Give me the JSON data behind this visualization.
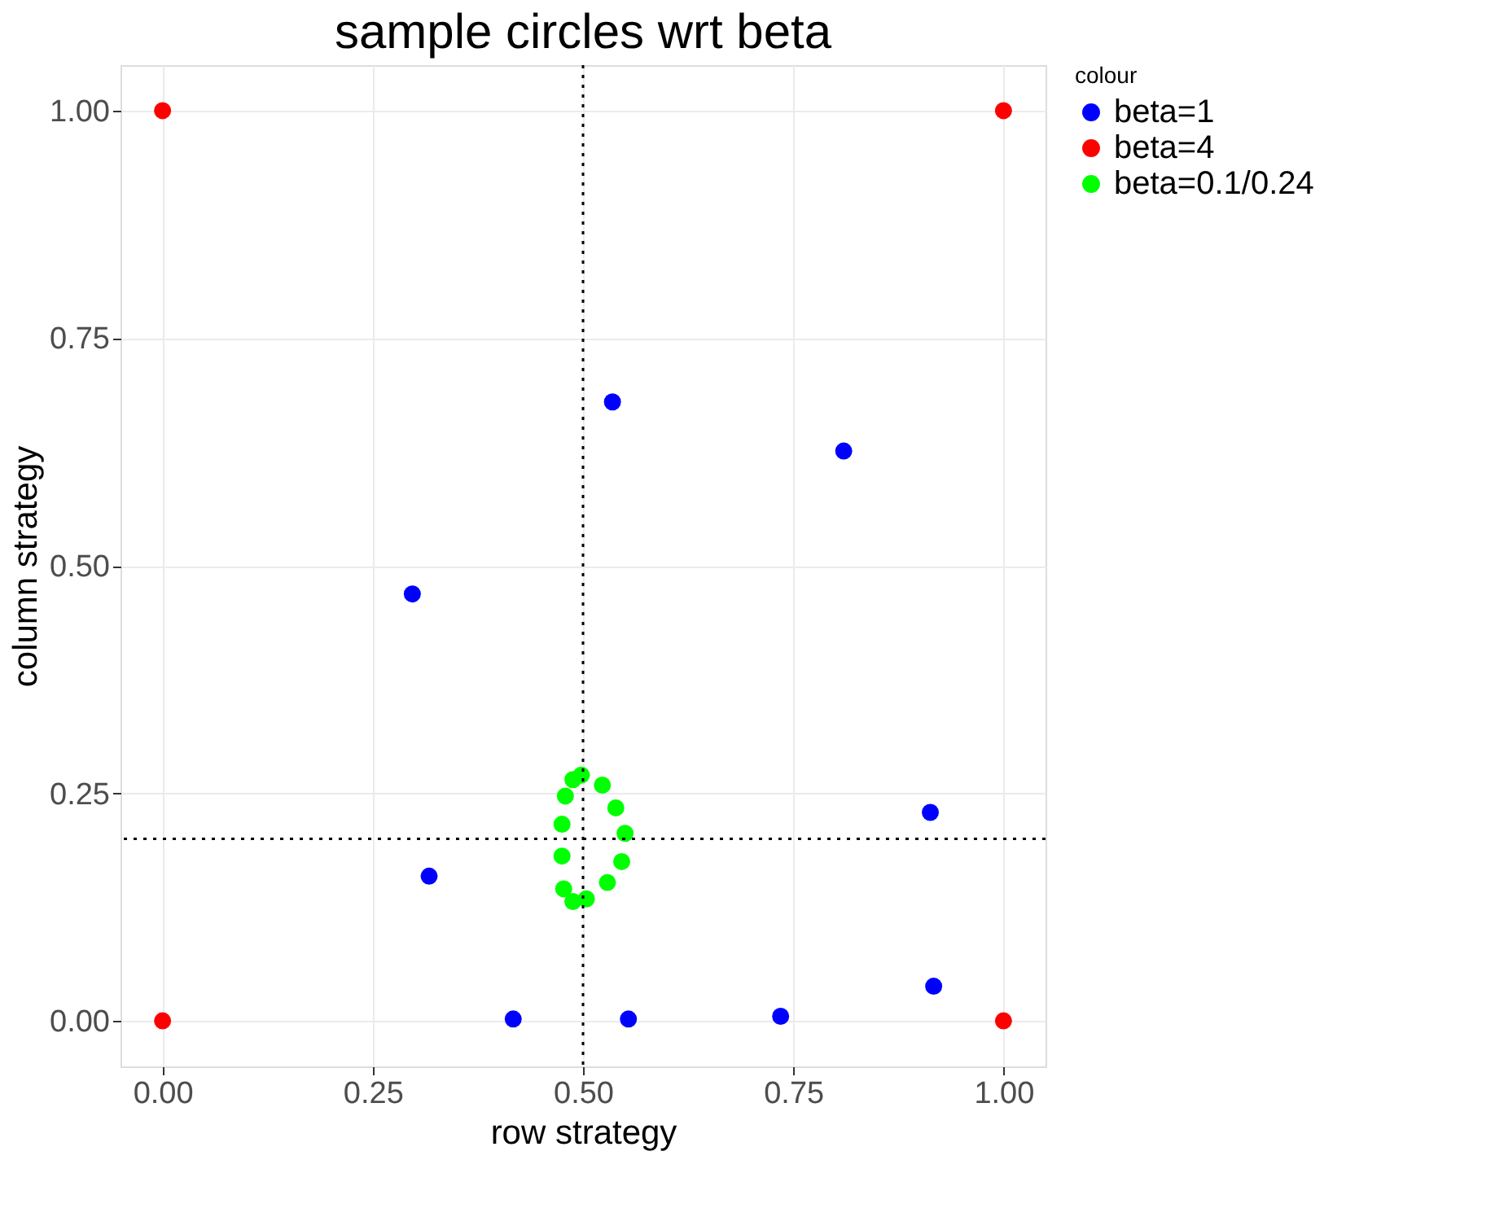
{
  "chart_data": {
    "type": "scatter",
    "title": "sample circles wrt beta",
    "xlabel": "row strategy",
    "ylabel": "column strategy",
    "legend_title": "colour",
    "legend": "right",
    "grid": true,
    "marker": "circle",
    "xlim": [
      -0.05,
      1.05
    ],
    "ylim": [
      -0.05,
      1.05
    ],
    "xticks": [
      {
        "value": 0,
        "label": "0.00"
      },
      {
        "value": 0.25,
        "label": "0.25"
      },
      {
        "value": 0.5,
        "label": "0.50"
      },
      {
        "value": 0.75,
        "label": "0.75"
      },
      {
        "value": 1,
        "label": "1.00"
      }
    ],
    "yticks": [
      {
        "value": 0,
        "label": "0.00"
      },
      {
        "value": 0.25,
        "label": "0.25"
      },
      {
        "value": 0.5,
        "label": "0.50"
      },
      {
        "value": 0.75,
        "label": "0.75"
      },
      {
        "value": 1,
        "label": "1.00"
      }
    ],
    "ref_lines": [
      {
        "axis": "x",
        "value": 0.5,
        "label": null,
        "color": "#000000",
        "line_style": "dotted"
      },
      {
        "axis": "y",
        "value": 0.2,
        "label": null,
        "color": "#000000",
        "line_style": "dotted"
      }
    ],
    "series": [
      {
        "name": "beta=1",
        "color": "#0000ff",
        "x": [
          0.535,
          0.81,
          0.297,
          0.913,
          0.317,
          0.417,
          0.554,
          0.735,
          0.917
        ],
        "values": [
          0.68,
          0.626,
          0.469,
          0.229,
          0.159,
          0.002,
          0.002,
          0.005,
          0.038
        ]
      },
      {
        "name": "beta=4",
        "color": "#ff0000",
        "x": [
          0,
          0,
          1,
          1
        ],
        "values": [
          0,
          1,
          0,
          1
        ]
      },
      {
        "name": "beta=0.1/0.24",
        "color": "#00ff00",
        "x": [
          0.498,
          0.523,
          0.539,
          0.55,
          0.546,
          0.529,
          0.504,
          0.488,
          0.477,
          0.475,
          0.475,
          0.479,
          0.488
        ],
        "values": [
          0.27,
          0.259,
          0.234,
          0.206,
          0.175,
          0.152,
          0.134,
          0.131,
          0.145,
          0.181,
          0.216,
          0.247,
          0.265
        ]
      }
    ]
  }
}
